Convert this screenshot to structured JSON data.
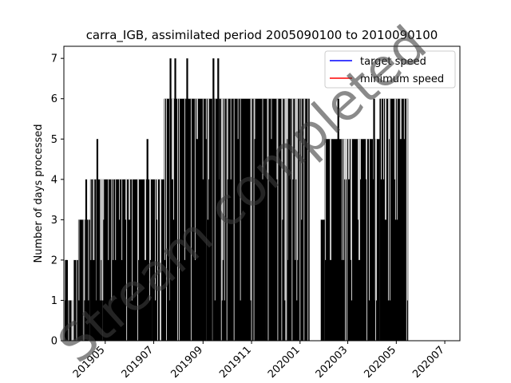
{
  "chart_data": {
    "type": "bar",
    "title": "carra_IGB, assimilated period 2005090100 to 2010090100",
    "xlabel": "",
    "ylabel": "Number of days processed",
    "ylim": [
      0,
      7.3
    ],
    "xlim": [
      "2019-03-10",
      "2020-07-20"
    ],
    "yticks": [
      0,
      1,
      2,
      3,
      4,
      5,
      6,
      7
    ],
    "xticks": [
      {
        "date": "2019-05-01",
        "label": "201905"
      },
      {
        "date": "2019-07-01",
        "label": "201907"
      },
      {
        "date": "2019-09-01",
        "label": "201909"
      },
      {
        "date": "2019-11-01",
        "label": "201911"
      },
      {
        "date": "2020-01-01",
        "label": "202001"
      },
      {
        "date": "2020-03-01",
        "label": "202003"
      },
      {
        "date": "2020-05-01",
        "label": "202005"
      },
      {
        "date": "2020-07-01",
        "label": "202007"
      }
    ],
    "bar_color": "#000000",
    "legend": {
      "position": "top-right",
      "entries": [
        {
          "label": "target speed",
          "color": "#0000ff"
        },
        {
          "label": "minimum speed",
          "color": "#ff0000"
        }
      ]
    },
    "periods": [
      {
        "start": "2019-03-11",
        "end": "2019-03-15",
        "value": 2
      },
      {
        "start": "2019-03-15",
        "end": "2019-03-22",
        "value": 1
      },
      {
        "start": "2019-03-22",
        "end": "2019-03-28",
        "value": 2
      },
      {
        "start": "2019-03-28",
        "end": "2019-04-03",
        "value": 3
      },
      {
        "start": "2019-04-03",
        "end": "2019-04-12",
        "value": 3
      },
      {
        "start": "2019-04-12",
        "end": "2019-04-28",
        "value": 4
      },
      {
        "start": "2019-04-28",
        "end": "2019-06-29",
        "value": 4
      },
      {
        "start": "2019-06-29",
        "end": "2019-07-14",
        "value": 4
      },
      {
        "start": "2019-07-14",
        "end": "2019-09-05",
        "value": 6
      },
      {
        "start": "2019-09-05",
        "end": "2019-10-10",
        "value": 6
      },
      {
        "start": "2019-10-10",
        "end": "2019-11-19",
        "value": 6
      },
      {
        "start": "2019-11-19",
        "end": "2020-01-13",
        "value": 6
      },
      {
        "start": "2020-01-13",
        "end": "2020-01-27",
        "value": 0
      },
      {
        "start": "2020-01-27",
        "end": "2020-02-01",
        "value": 3
      },
      {
        "start": "2020-02-01",
        "end": "2020-03-01",
        "value": 5
      },
      {
        "start": "2020-03-01",
        "end": "2020-04-10",
        "value": 5
      },
      {
        "start": "2020-04-10",
        "end": "2020-05-16",
        "value": 6
      },
      {
        "start": "2020-05-16",
        "end": "2020-07-20",
        "value": 0
      }
    ],
    "peaks": [
      {
        "date": "2019-03-13",
        "value": 2
      },
      {
        "date": "2019-04-07",
        "value": 4
      },
      {
        "date": "2019-04-21",
        "value": 5
      },
      {
        "date": "2019-06-23",
        "value": 5
      },
      {
        "date": "2019-07-22",
        "value": 7
      },
      {
        "date": "2019-07-28",
        "value": 7
      },
      {
        "date": "2019-08-12",
        "value": 7
      },
      {
        "date": "2019-09-14",
        "value": 7
      },
      {
        "date": "2019-09-20",
        "value": 7
      },
      {
        "date": "2019-12-18",
        "value": 6
      },
      {
        "date": "2020-02-18",
        "value": 6
      },
      {
        "date": "2020-04-03",
        "value": 6
      }
    ]
  },
  "watermark": "Stream completed"
}
